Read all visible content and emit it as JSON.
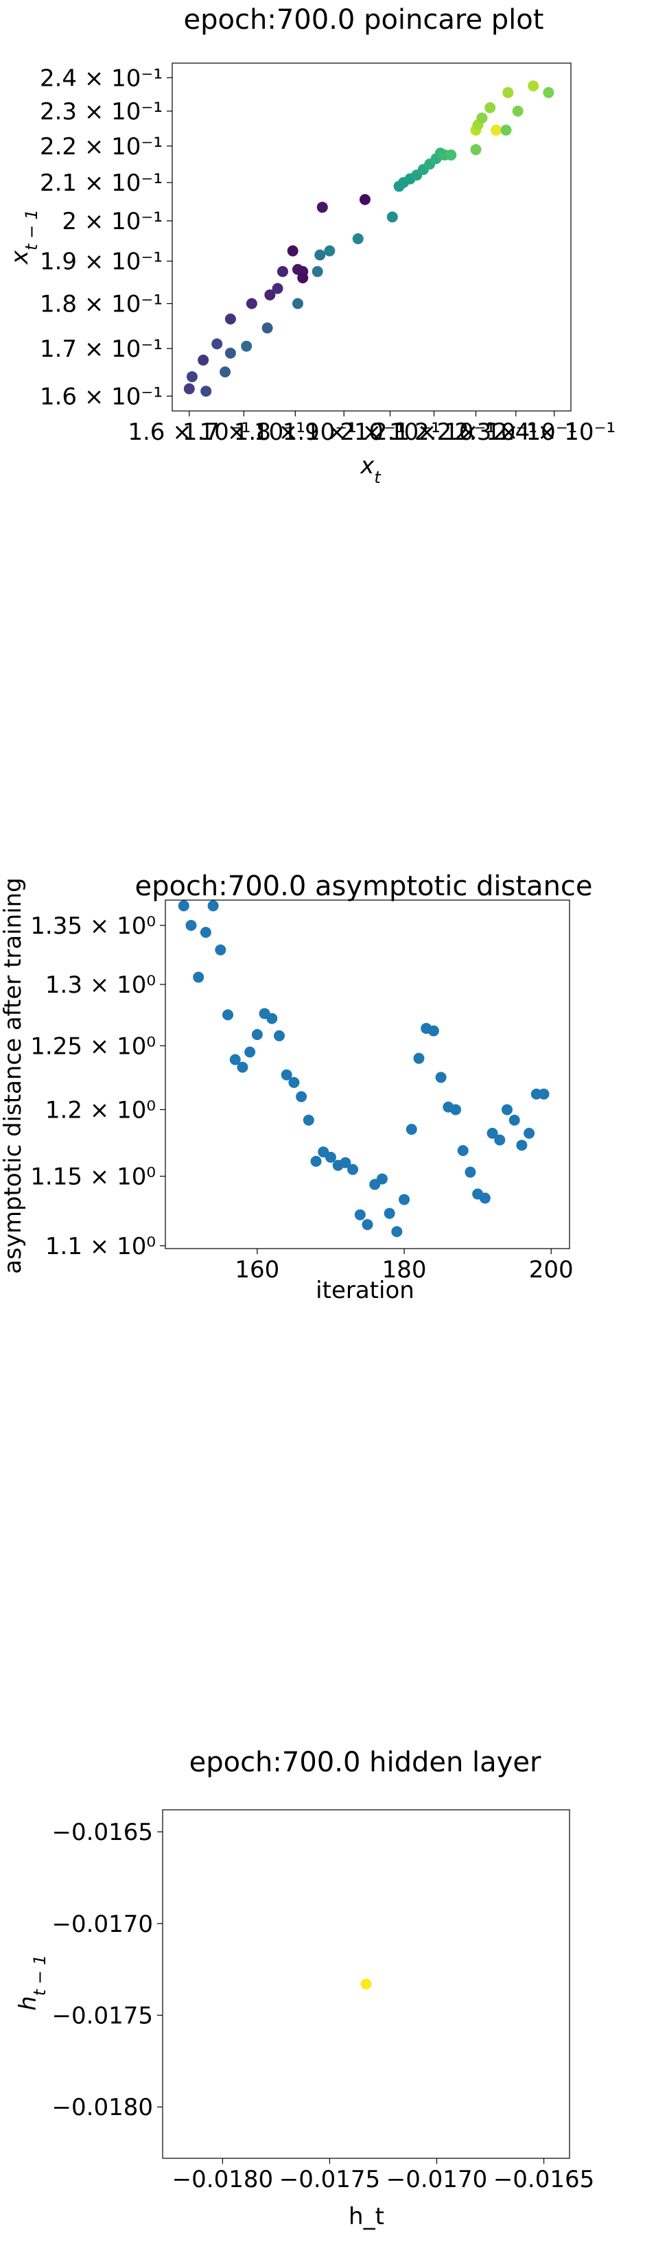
{
  "chart_data": [
    {
      "type": "scatter",
      "title": "epoch:700.0 poincare plot",
      "xlabel": "x_t",
      "ylabel": "x_{t-1}",
      "xscale": "log",
      "yscale": "log",
      "xlim": [
        0.157,
        0.2445
      ],
      "ylim": [
        0.157,
        0.2445
      ],
      "grid": false,
      "colormap": "viridis",
      "x_ticks": [
        {
          "value": 0.16,
          "label": "1.6 × 10⁻¹"
        },
        {
          "value": 0.17,
          "label": "1.7 × 10⁻¹"
        },
        {
          "value": 0.18,
          "label": "1.8 × 10⁻¹"
        },
        {
          "value": 0.19,
          "label": "1.9 × 10⁻¹"
        },
        {
          "value": 0.2,
          "label": "2 × 10⁻¹"
        },
        {
          "value": 0.21,
          "label": "2.1 × 10⁻¹"
        },
        {
          "value": 0.22,
          "label": "2.2 × 10⁻¹"
        },
        {
          "value": 0.23,
          "label": "2.3 × 10⁻¹"
        },
        {
          "value": 0.24,
          "label": "2.4 × 10⁻¹"
        }
      ],
      "y_ticks": [
        {
          "value": 0.16,
          "label": "1.6 × 10⁻¹"
        },
        {
          "value": 0.17,
          "label": "1.7 × 10⁻¹"
        },
        {
          "value": 0.18,
          "label": "1.8 × 10⁻¹"
        },
        {
          "value": 0.19,
          "label": "1.9 × 10⁻¹"
        },
        {
          "value": 0.2,
          "label": "2 × 10⁻¹"
        },
        {
          "value": 0.21,
          "label": "2.1 × 10⁻¹"
        },
        {
          "value": 0.22,
          "label": "2.2 × 10⁻¹"
        },
        {
          "value": 0.23,
          "label": "2.3 × 10⁻¹"
        },
        {
          "value": 0.24,
          "label": "2.4 × 10⁻¹"
        }
      ],
      "points": [
        {
          "x": 0.16,
          "y": 0.1615,
          "c": 0.18
        },
        {
          "x": 0.1605,
          "y": 0.164,
          "c": 0.2
        },
        {
          "x": 0.163,
          "y": 0.161,
          "c": 0.22
        },
        {
          "x": 0.1625,
          "y": 0.1675,
          "c": 0.16
        },
        {
          "x": 0.165,
          "y": 0.171,
          "c": 0.22
        },
        {
          "x": 0.1665,
          "y": 0.165,
          "c": 0.3
        },
        {
          "x": 0.1675,
          "y": 0.169,
          "c": 0.28
        },
        {
          "x": 0.1675,
          "y": 0.1765,
          "c": 0.15
        },
        {
          "x": 0.1705,
          "y": 0.1705,
          "c": 0.34
        },
        {
          "x": 0.1715,
          "y": 0.18,
          "c": 0.12
        },
        {
          "x": 0.1745,
          "y": 0.1745,
          "c": 0.3
        },
        {
          "x": 0.175,
          "y": 0.182,
          "c": 0.1
        },
        {
          "x": 0.1765,
          "y": 0.1835,
          "c": 0.12
        },
        {
          "x": 0.1775,
          "y": 0.1875,
          "c": 0.1
        },
        {
          "x": 0.1795,
          "y": 0.1925,
          "c": 0.04
        },
        {
          "x": 0.1805,
          "y": 0.188,
          "c": 0.06
        },
        {
          "x": 0.1815,
          "y": 0.1875,
          "c": 0.05
        },
        {
          "x": 0.1805,
          "y": 0.18,
          "c": 0.36
        },
        {
          "x": 0.1815,
          "y": 0.186,
          "c": 0.04
        },
        {
          "x": 0.1845,
          "y": 0.1875,
          "c": 0.4
        },
        {
          "x": 0.185,
          "y": 0.1915,
          "c": 0.4
        },
        {
          "x": 0.1855,
          "y": 0.2035,
          "c": 0.06
        },
        {
          "x": 0.187,
          "y": 0.1925,
          "c": 0.44
        },
        {
          "x": 0.193,
          "y": 0.1955,
          "c": 0.46
        },
        {
          "x": 0.1945,
          "y": 0.2055,
          "c": 0.03
        },
        {
          "x": 0.2005,
          "y": 0.201,
          "c": 0.5
        },
        {
          "x": 0.202,
          "y": 0.209,
          "c": 0.54
        },
        {
          "x": 0.203,
          "y": 0.21,
          "c": 0.55
        },
        {
          "x": 0.2045,
          "y": 0.211,
          "c": 0.56
        },
        {
          "x": 0.206,
          "y": 0.212,
          "c": 0.58
        },
        {
          "x": 0.2075,
          "y": 0.2135,
          "c": 0.6
        },
        {
          "x": 0.209,
          "y": 0.215,
          "c": 0.62
        },
        {
          "x": 0.2105,
          "y": 0.2165,
          "c": 0.64
        },
        {
          "x": 0.2115,
          "y": 0.218,
          "c": 0.66
        },
        {
          "x": 0.2125,
          "y": 0.2175,
          "c": 0.68
        },
        {
          "x": 0.214,
          "y": 0.2175,
          "c": 0.7
        },
        {
          "x": 0.22,
          "y": 0.219,
          "c": 0.78
        },
        {
          "x": 0.22,
          "y": 0.2245,
          "c": 0.9
        },
        {
          "x": 0.2205,
          "y": 0.226,
          "c": 0.86
        },
        {
          "x": 0.2215,
          "y": 0.228,
          "c": 0.82
        },
        {
          "x": 0.2235,
          "y": 0.231,
          "c": 0.84
        },
        {
          "x": 0.225,
          "y": 0.2245,
          "c": 0.97
        },
        {
          "x": 0.2275,
          "y": 0.2245,
          "c": 0.78
        },
        {
          "x": 0.228,
          "y": 0.2355,
          "c": 0.86
        },
        {
          "x": 0.2305,
          "y": 0.23,
          "c": 0.8
        },
        {
          "x": 0.2345,
          "y": 0.2375,
          "c": 0.88
        },
        {
          "x": 0.2385,
          "y": 0.2355,
          "c": 0.8
        }
      ]
    },
    {
      "type": "scatter",
      "title": "epoch:700.0 asymptotic distance",
      "xlabel": "iteration",
      "ylabel": "asymptotic distance after training",
      "yscale": "log",
      "xlim": [
        147.5,
        202.5
      ],
      "ylim": [
        1.098,
        1.372
      ],
      "grid": false,
      "color": "#1f77b4",
      "x_ticks": [
        {
          "value": 160,
          "label": "160"
        },
        {
          "value": 180,
          "label": "180"
        },
        {
          "value": 200,
          "label": "200"
        }
      ],
      "y_ticks": [
        {
          "value": 1.1,
          "label": "1.1 × 10⁰"
        },
        {
          "value": 1.15,
          "label": "1.15 × 10⁰"
        },
        {
          "value": 1.2,
          "label": "1.2 × 10⁰"
        },
        {
          "value": 1.25,
          "label": "1.25 × 10⁰"
        },
        {
          "value": 1.3,
          "label": "1.3 × 10⁰"
        },
        {
          "value": 1.35,
          "label": "1.35 × 10⁰"
        }
      ],
      "x": [
        150,
        151,
        152,
        153,
        154,
        155,
        156,
        157,
        158,
        159,
        160,
        161,
        162,
        163,
        164,
        165,
        166,
        167,
        168,
        169,
        170,
        171,
        172,
        173,
        174,
        175,
        176,
        177,
        178,
        179,
        180,
        181,
        182,
        183,
        184,
        185,
        186,
        187,
        188,
        189,
        190,
        191,
        192,
        193,
        194,
        195,
        196,
        197,
        198,
        199
      ],
      "y": [
        1.367,
        1.35,
        1.306,
        1.344,
        1.367,
        1.329,
        1.275,
        1.239,
        1.233,
        1.245,
        1.259,
        1.276,
        1.272,
        1.258,
        1.227,
        1.221,
        1.21,
        1.192,
        1.161,
        1.168,
        1.164,
        1.158,
        1.16,
        1.155,
        1.122,
        1.115,
        1.144,
        1.148,
        1.123,
        1.11,
        1.133,
        1.185,
        1.24,
        1.264,
        1.262,
        1.225,
        1.202,
        1.2,
        1.169,
        1.153,
        1.137,
        1.134,
        1.182,
        1.177,
        1.2,
        1.192,
        1.173,
        1.182,
        1.212,
        1.212
      ]
    },
    {
      "type": "scatter",
      "title": "epoch:700.0 hidden layer",
      "xlabel": "h_t",
      "ylabel": "h_{t-1}",
      "xlim": [
        -0.01828,
        -0.01638
      ],
      "ylim": [
        -0.01828,
        -0.01638
      ],
      "grid": false,
      "x_ticks": [
        {
          "value": -0.018,
          "label": "−0.0180"
        },
        {
          "value": -0.0175,
          "label": "−0.0175"
        },
        {
          "value": -0.017,
          "label": "−0.0170"
        },
        {
          "value": -0.0165,
          "label": "−0.0165"
        }
      ],
      "y_ticks": [
        {
          "value": -0.0165,
          "label": "−0.0165"
        },
        {
          "value": -0.017,
          "label": "−0.0170"
        },
        {
          "value": -0.0175,
          "label": "−0.0175"
        },
        {
          "value": -0.018,
          "label": "−0.0180"
        }
      ],
      "points": [
        {
          "x": -0.01733,
          "y": -0.01733,
          "color": "#fde725"
        }
      ]
    }
  ]
}
